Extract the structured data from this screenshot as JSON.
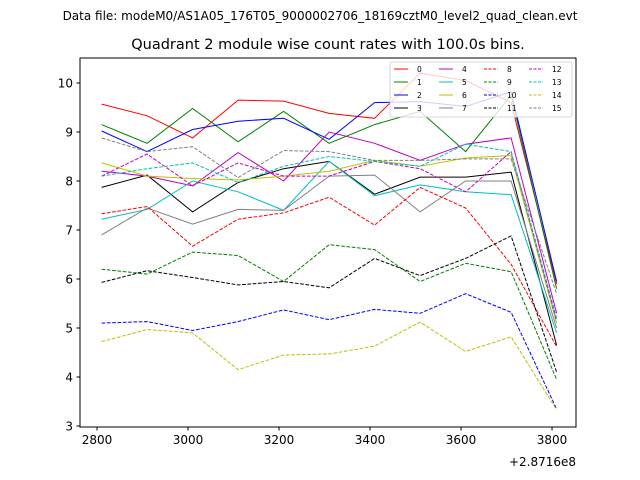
{
  "chart_data": {
    "type": "line",
    "suptitle": "Data file: modeM0/AS1A05_176T05_9000002706_18169cztM0_level2_quad_clean.evt",
    "title": "Quadrant 2 module wise count rates with 100.0s bins.",
    "xlabel": "",
    "ylabel": "",
    "x_offset_text": "+2.8716e8",
    "xlim": [
      2762.6,
      3852.7
    ],
    "ylim": [
      2.98,
      10.51
    ],
    "xticks": [
      2800,
      3000,
      3200,
      3400,
      3600,
      3800
    ],
    "yticks": [
      3,
      4,
      5,
      6,
      7,
      8,
      9,
      10
    ],
    "grid": false,
    "legend_placement": "top-right",
    "x": [
      2810,
      2910,
      3010,
      3110,
      3210,
      3310,
      3410,
      3510,
      3610,
      3710,
      3810
    ],
    "series": [
      {
        "name": "0",
        "color": "#ff0000",
        "dash": false,
        "values": [
          9.57,
          9.33,
          8.88,
          9.65,
          9.63,
          9.38,
          9.28,
          10.2,
          10.05,
          9.6,
          5.9
        ]
      },
      {
        "name": "1",
        "color": "#008000",
        "dash": false,
        "values": [
          9.15,
          8.77,
          9.48,
          8.8,
          9.42,
          8.77,
          9.15,
          9.42,
          8.6,
          9.75,
          5.8
        ]
      },
      {
        "name": "2",
        "color": "#0000ff",
        "dash": false,
        "values": [
          9.02,
          8.6,
          9.05,
          9.22,
          9.28,
          8.85,
          9.6,
          9.62,
          9.52,
          9.82,
          5.95
        ]
      },
      {
        "name": "3",
        "color": "#000000",
        "dash": false,
        "values": [
          7.87,
          8.12,
          7.37,
          7.97,
          8.25,
          8.4,
          7.73,
          8.08,
          8.08,
          8.18,
          4.65
        ]
      },
      {
        "name": "4",
        "color": "#bf00bf",
        "dash": false,
        "values": [
          8.2,
          8.1,
          7.9,
          8.58,
          8.0,
          9.0,
          8.77,
          8.42,
          8.75,
          8.88,
          5.3
        ]
      },
      {
        "name": "5",
        "color": "#00bfbf",
        "dash": false,
        "values": [
          7.22,
          7.42,
          8.0,
          7.78,
          7.4,
          8.4,
          7.7,
          7.92,
          7.78,
          7.72,
          4.9
        ]
      },
      {
        "name": "6",
        "color": "#bfbf00",
        "dash": false,
        "values": [
          8.37,
          8.1,
          8.05,
          8.02,
          8.1,
          8.2,
          8.42,
          8.3,
          8.47,
          8.52,
          5.1
        ]
      },
      {
        "name": "7",
        "color": "#808080",
        "dash": false,
        "values": [
          6.9,
          7.45,
          7.12,
          7.42,
          7.4,
          8.1,
          8.12,
          7.37,
          8.0,
          8.0,
          5.0
        ]
      },
      {
        "name": "8",
        "color": "#ff0000",
        "dash": true,
        "values": [
          7.33,
          7.48,
          6.67,
          7.22,
          7.35,
          7.67,
          7.1,
          7.87,
          7.45,
          6.3,
          4.62
        ]
      },
      {
        "name": "9",
        "color": "#008000",
        "dash": true,
        "values": [
          6.2,
          6.1,
          6.55,
          6.48,
          5.95,
          6.7,
          6.6,
          5.95,
          6.32,
          6.15,
          3.95
        ]
      },
      {
        "name": "10",
        "color": "#0000ff",
        "dash": true,
        "values": [
          5.1,
          5.13,
          4.95,
          5.13,
          5.37,
          5.17,
          5.38,
          5.3,
          5.7,
          5.32,
          3.35
        ]
      },
      {
        "name": "11",
        "color": "#000000",
        "dash": true,
        "values": [
          5.93,
          6.17,
          6.03,
          5.88,
          5.95,
          5.82,
          6.42,
          6.07,
          6.42,
          6.88,
          4.1
        ]
      },
      {
        "name": "12",
        "color": "#bf00bf",
        "dash": true,
        "values": [
          8.1,
          8.55,
          7.9,
          8.37,
          8.1,
          8.1,
          8.4,
          8.25,
          7.78,
          8.6,
          5.15
        ]
      },
      {
        "name": "13",
        "color": "#00bfbf",
        "dash": true,
        "values": [
          8.1,
          8.25,
          8.37,
          7.97,
          8.3,
          8.5,
          8.4,
          8.3,
          8.75,
          8.6,
          5.2
        ]
      },
      {
        "name": "14",
        "color": "#bfbf00",
        "dash": true,
        "values": [
          4.72,
          4.97,
          4.9,
          4.15,
          4.45,
          4.47,
          4.63,
          5.12,
          4.52,
          4.82,
          3.33
        ]
      },
      {
        "name": "15",
        "color": "#808080",
        "dash": true,
        "values": [
          8.88,
          8.6,
          8.7,
          8.07,
          8.62,
          8.6,
          8.42,
          8.42,
          8.45,
          8.45,
          5.7
        ]
      }
    ]
  }
}
